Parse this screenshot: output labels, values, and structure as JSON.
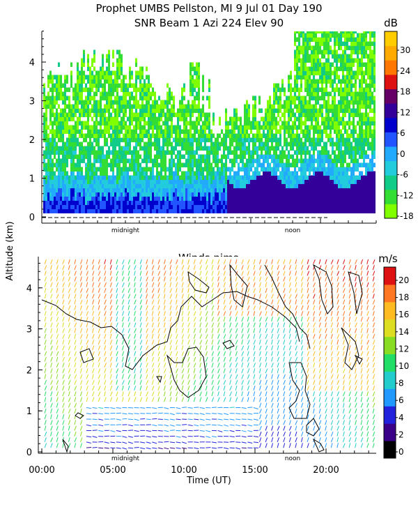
{
  "chart_data": [
    {
      "type": "heatmap",
      "title": "Prophet  UMBS Pellston, MI    9 Jul 01 Day 190",
      "subtitle": "SNR Beam 1 Azi 224 Elev 90",
      "ylabel": "Altitude (km)",
      "ylim": [
        0,
        4.9
      ],
      "y_ticks": [
        "0",
        "1",
        "2",
        "3",
        "4"
      ],
      "x_annotations": [
        "midnight",
        "noon"
      ],
      "colorbar": {
        "unit": "dB",
        "ticks": [
          "-18",
          "-12",
          "-6",
          "0",
          "6",
          "12",
          "18",
          "24",
          "30"
        ],
        "colors": [
          "#7fff00",
          "#33dd33",
          "#11cc88",
          "#22ccdd",
          "#22aaff",
          "#2255ff",
          "#0000cc",
          "#330099",
          "#660066",
          "#dd1111",
          "#ff7700",
          "#ffaa00",
          "#ffcc00"
        ]
      }
    },
    {
      "type": "heatmap",
      "title": "Winds nima",
      "xlabel": "Time (UT)",
      "ylabel": "Altitude (km)",
      "ylim": [
        0,
        4.7
      ],
      "xlim": [
        0,
        24
      ],
      "x_ticks": [
        "00:00",
        "05:00",
        "10:00",
        "15:00",
        "20:00"
      ],
      "y_ticks": [
        "0",
        "1",
        "2",
        "3",
        "4"
      ],
      "x_annotations": [
        "midnight",
        "noon"
      ],
      "colorbar": {
        "unit": "m/s",
        "ticks": [
          "0",
          "2",
          "4",
          "6",
          "8",
          "10",
          "12",
          "14",
          "16",
          "18",
          "20"
        ],
        "colors": [
          "#000000",
          "#3a0088",
          "#2222dd",
          "#2299ff",
          "#22cccc",
          "#22dd66",
          "#88dd22",
          "#dddd22",
          "#ffbb22",
          "#ff7722",
          "#dd1111"
        ]
      }
    }
  ]
}
